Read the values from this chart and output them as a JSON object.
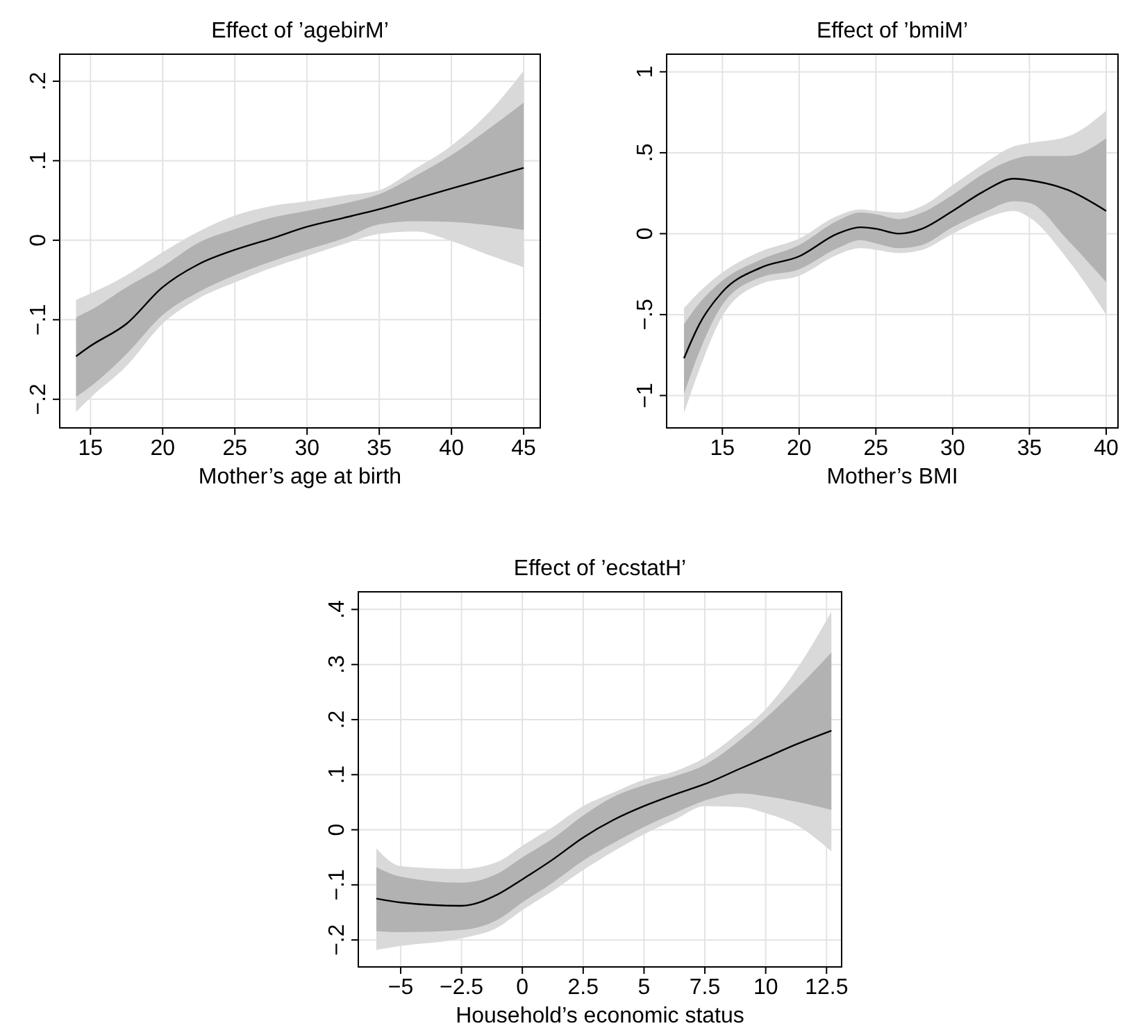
{
  "chart_data": [
    {
      "type": "line",
      "title": "Effect of ’agebirM’",
      "xlabel": "Mother’s age at birth",
      "xlim": [
        12.87,
        46.15
      ],
      "ylim": [
        -0.236,
        0.234
      ],
      "xticks": [
        15,
        20,
        25,
        30,
        35,
        40,
        45
      ],
      "yticks": [
        {
          "value": -0.2,
          "label": "−.2"
        },
        {
          "value": -0.1,
          "label": "−.1"
        },
        {
          "value": 0,
          "label": "0"
        },
        {
          "value": 0.1,
          "label": ".1"
        },
        {
          "value": 0.2,
          "label": ".2"
        }
      ],
      "grid": true,
      "series": [
        {
          "color": "#d9d9d9",
          "x": [
            14,
            15,
            17.5,
            20,
            22.5,
            25,
            27.5,
            30,
            32.5,
            35,
            37.5,
            40,
            42.5,
            45
          ],
          "values": [
            null,
            null,
            null,
            null,
            null,
            null,
            null,
            null,
            null,
            null,
            null,
            null,
            null,
            null
          ],
          "upper": [
            -0.075,
            -0.067,
            -0.044,
            -0.015,
            0.011,
            0.031,
            0.043,
            0.049,
            0.056,
            0.063,
            0.09,
            0.119,
            0.159,
            0.213
          ],
          "lower": [
            -0.216,
            -0.198,
            -0.158,
            -0.105,
            -0.073,
            -0.053,
            -0.035,
            -0.02,
            -0.005,
            0.008,
            0.011,
            -0.001,
            -0.018,
            -0.034
          ]
        },
        {
          "color": "#000000",
          "x": [
            14,
            15,
            17.5,
            20,
            22.5,
            25,
            27.5,
            30,
            32.5,
            35,
            37.5,
            40,
            42.5,
            45
          ],
          "values": [
            -0.146,
            -0.133,
            -0.105,
            -0.059,
            -0.03,
            -0.012,
            0.002,
            0.017,
            0.028,
            0.039,
            0.052,
            0.065,
            0.078,
            0.091
          ],
          "upper": [
            -0.097,
            -0.088,
            -0.059,
            -0.033,
            -0.003,
            0.014,
            0.028,
            0.037,
            0.046,
            0.058,
            0.081,
            0.107,
            0.139,
            0.173
          ],
          "lower": [
            -0.197,
            -0.184,
            -0.143,
            -0.094,
            -0.065,
            -0.044,
            -0.027,
            -0.012,
            0.002,
            0.02,
            0.024,
            0.023,
            0.019,
            0.013
          ]
        }
      ]
    },
    {
      "type": "line",
      "title": "Effect of ’bmiM’",
      "xlabel": "Mother’s BMI",
      "xlim": [
        11.37,
        40.77
      ],
      "ylim": [
        -1.2,
        1.109
      ],
      "xticks": [
        15,
        20,
        25,
        30,
        35,
        40
      ],
      "yticks": [
        {
          "value": -1,
          "label": "−1"
        },
        {
          "value": -0.5,
          "label": "−.5"
        },
        {
          "value": 0,
          "label": "0"
        },
        {
          "value": 0.5,
          "label": ".5"
        },
        {
          "value": 1,
          "label": "1"
        }
      ],
      "grid": true,
      "series": [
        {
          "color": "#d9d9d9",
          "x": [
            12.5,
            13.5,
            15,
            17.5,
            20,
            22.5,
            24,
            25,
            26.5,
            28,
            30,
            32,
            34,
            35,
            37.5,
            40
          ],
          "values": [
            null,
            null,
            null,
            null,
            null,
            null,
            null,
            null,
            null,
            null,
            null,
            null,
            null,
            null,
            null,
            null
          ],
          "upper": [
            -0.46,
            -0.36,
            -0.24,
            -0.11,
            -0.03,
            0.11,
            0.15,
            0.14,
            0.13,
            0.17,
            0.3,
            0.43,
            0.54,
            0.56,
            0.6,
            0.76
          ],
          "lower": [
            -1.11,
            -0.84,
            -0.51,
            -0.31,
            -0.26,
            -0.13,
            -0.09,
            -0.1,
            -0.12,
            -0.1,
            0,
            0.09,
            0.14,
            0.1,
            -0.16,
            -0.5
          ]
        },
        {
          "color": "#000000",
          "x": [
            12.5,
            13.5,
            15,
            17.5,
            20,
            22.5,
            24,
            25,
            26.5,
            28,
            30,
            32,
            34,
            35,
            37.5,
            40
          ],
          "values": [
            -0.77,
            -0.56,
            -0.36,
            -0.21,
            -0.14,
            0,
            0.04,
            0.03,
            0,
            0.03,
            0.14,
            0.26,
            0.34,
            0.33,
            0.27,
            0.14
          ],
          "upper": [
            -0.56,
            -0.43,
            -0.29,
            -0.16,
            -0.07,
            0.08,
            0.13,
            0.12,
            0.09,
            0.13,
            0.24,
            0.37,
            0.46,
            0.48,
            0.48,
            0.59
          ],
          "lower": [
            -0.99,
            -0.73,
            -0.44,
            -0.27,
            -0.22,
            -0.09,
            -0.04,
            -0.06,
            -0.09,
            -0.07,
            0.04,
            0.13,
            0.2,
            0.19,
            -0.04,
            -0.3
          ]
        }
      ]
    },
    {
      "type": "line",
      "title": "Effect of ’ecstatH’",
      "xlabel": "Household’s economic status",
      "xlim": [
        -6.74,
        13.12
      ],
      "ylim": [
        -0.249,
        0.432
      ],
      "xticks": [
        {
          "value": -5,
          "label": "−5"
        },
        {
          "value": -2.5,
          "label": "−2.5"
        },
        0,
        2.5,
        5,
        7.5,
        10,
        12.5
      ],
      "yticks": [
        {
          "value": -0.2,
          "label": "−.2"
        },
        {
          "value": -0.1,
          "label": "−.1"
        },
        {
          "value": 0,
          "label": "0"
        },
        {
          "value": 0.1,
          "label": ".1"
        },
        {
          "value": 0.2,
          "label": ".2"
        },
        {
          "value": 0.3,
          "label": ".3"
        },
        {
          "value": 0.4,
          "label": ".4"
        }
      ],
      "grid": true,
      "series": [
        {
          "color": "#d9d9d9",
          "x": [
            -6,
            -5,
            -2.5,
            -1,
            0,
            1.25,
            2.5,
            3.75,
            5,
            6.25,
            7.5,
            9,
            10,
            11.25,
            12.7
          ],
          "values": [
            null,
            null,
            null,
            null,
            null,
            null,
            null,
            null,
            null,
            null,
            null,
            null,
            null,
            null,
            null
          ],
          "upper": [
            -0.034,
            -0.066,
            -0.071,
            -0.058,
            -0.029,
            0.005,
            0.043,
            0.068,
            0.091,
            0.106,
            0.131,
            0.18,
            0.219,
            0.29,
            0.396
          ],
          "lower": [
            -0.218,
            -0.211,
            -0.197,
            -0.177,
            -0.146,
            -0.111,
            -0.073,
            -0.039,
            -0.008,
            0.018,
            0.043,
            0.041,
            0.03,
            0.009,
            -0.039
          ]
        },
        {
          "color": "#000000",
          "x": [
            -6,
            -5,
            -2.5,
            -1,
            0,
            1.25,
            2.5,
            3.75,
            5,
            6.25,
            7.5,
            9,
            10,
            11.25,
            12.7
          ],
          "values": [
            -0.125,
            -0.132,
            -0.138,
            -0.117,
            -0.09,
            -0.054,
            -0.014,
            0.018,
            0.043,
            0.064,
            0.083,
            0.112,
            0.131,
            0.155,
            0.18
          ],
          "upper": [
            -0.068,
            -0.085,
            -0.096,
            -0.079,
            -0.05,
            -0.016,
            0.026,
            0.06,
            0.081,
            0.097,
            0.118,
            0.165,
            0.203,
            0.255,
            0.322
          ],
          "lower": [
            -0.184,
            -0.186,
            -0.182,
            -0.163,
            -0.132,
            -0.096,
            -0.056,
            -0.024,
            0.005,
            0.03,
            0.053,
            0.066,
            0.061,
            0.051,
            0.036
          ]
        }
      ]
    }
  ]
}
